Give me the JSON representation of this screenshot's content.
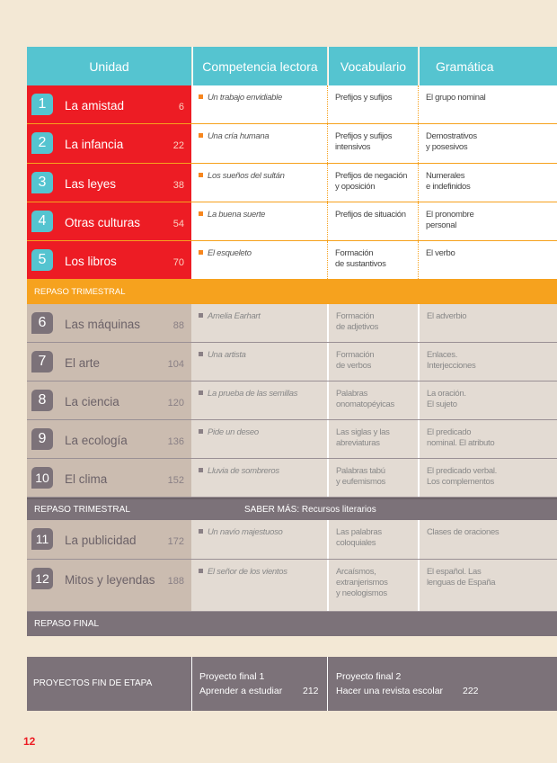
{
  "header": {
    "unidad": "Unidad",
    "competencia": "Competencia lectora",
    "vocabulario": "Vocabulario",
    "gramatica": "Gramática"
  },
  "units": [
    {
      "num": "1",
      "name": "La amistad",
      "page": "6",
      "lectura": "Un trabajo envidiable",
      "vocab": [
        "Prefijos y sufijos"
      ],
      "gram": [
        "El grupo nominal"
      ]
    },
    {
      "num": "2",
      "name": "La infancia",
      "page": "22",
      "lectura": "Una cría humana",
      "vocab": [
        "Prefijos y sufijos",
        "intensivos"
      ],
      "gram": [
        "Demostrativos",
        "y posesivos"
      ]
    },
    {
      "num": "3",
      "name": "Las leyes",
      "page": "38",
      "lectura": "Los sueños del sultán",
      "vocab": [
        "Prefijos de negación",
        "y oposición"
      ],
      "gram": [
        "Numerales",
        "e indefinidos"
      ]
    },
    {
      "num": "4",
      "name": "Otras culturas",
      "page": "54",
      "lectura": "La buena suerte",
      "vocab": [
        "Prefijos de situación"
      ],
      "gram": [
        "El pronombre",
        "personal"
      ]
    },
    {
      "num": "5",
      "name": "Los libros",
      "page": "70",
      "lectura": "El esqueleto",
      "vocab": [
        "Formación",
        "de sustantivos"
      ],
      "gram": [
        "El verbo"
      ]
    },
    {
      "num": "6",
      "name": "Las máquinas",
      "page": "88",
      "lectura": "Amelia Earhart",
      "vocab": [
        "Formación",
        "de adjetivos"
      ],
      "gram": [
        "El adverbio"
      ]
    },
    {
      "num": "7",
      "name": "El arte",
      "page": "104",
      "lectura": "Una artista",
      "vocab": [
        "Formación",
        "de verbos"
      ],
      "gram": [
        "Enlaces.",
        "Interjecciones"
      ]
    },
    {
      "num": "8",
      "name": "La ciencia",
      "page": "120",
      "lectura": "La prueba de las semillas",
      "vocab": [
        "Palabras",
        "onomatopéyicas"
      ],
      "gram": [
        "La oración.",
        "El sujeto"
      ]
    },
    {
      "num": "9",
      "name": "La ecología",
      "page": "136",
      "lectura": "Pide un deseo",
      "vocab": [
        "Las siglas y las",
        "abreviaturas"
      ],
      "gram": [
        "El predicado",
        "nominal. El atributo"
      ]
    },
    {
      "num": "10",
      "name": "El clima",
      "page": "152",
      "lectura": "Lluvia de sombreros",
      "vocab": [
        "Palabras tabú",
        "y eufemismos"
      ],
      "gram": [
        "El predicado verbal.",
        "Los complementos"
      ]
    },
    {
      "num": "11",
      "name": "La publicidad",
      "page": "172",
      "lectura": "Un navío majestuoso",
      "vocab": [
        "Las palabras",
        "coloquiales"
      ],
      "gram": [
        "Clases de oraciones"
      ]
    },
    {
      "num": "12",
      "name": "Mitos y leyendas",
      "page": "188",
      "lectura": "El señor de los vientos",
      "vocab": [
        "Arcaísmos,",
        "extranjerismos",
        "y neologismos"
      ],
      "gram": [
        "El español. Las",
        "lenguas de España"
      ]
    }
  ],
  "bands": {
    "repaso1": "REPASO TRIMESTRAL",
    "repaso2": "REPASO TRIMESTRAL",
    "saber_mas": "SABER MÁS: Recursos literarios",
    "repaso_final": "REPASO FINAL"
  },
  "proyectos": {
    "label": "PROYECTOS FIN DE ETAPA",
    "p1": {
      "title": "Proyecto final 1",
      "subtitle": "Aprender a estudiar",
      "page": "212"
    },
    "p2": {
      "title": "Proyecto final 2",
      "subtitle": "Hacer una revista escolar",
      "page": "222"
    }
  },
  "page_number": "12",
  "colors": {
    "teal": "#55c4d0",
    "red": "#ed1c24",
    "orange": "#f6a21e",
    "gray": "#7c7279",
    "beige_unit": "#cbbcb0",
    "beige_cell": "#e3dbd3"
  }
}
